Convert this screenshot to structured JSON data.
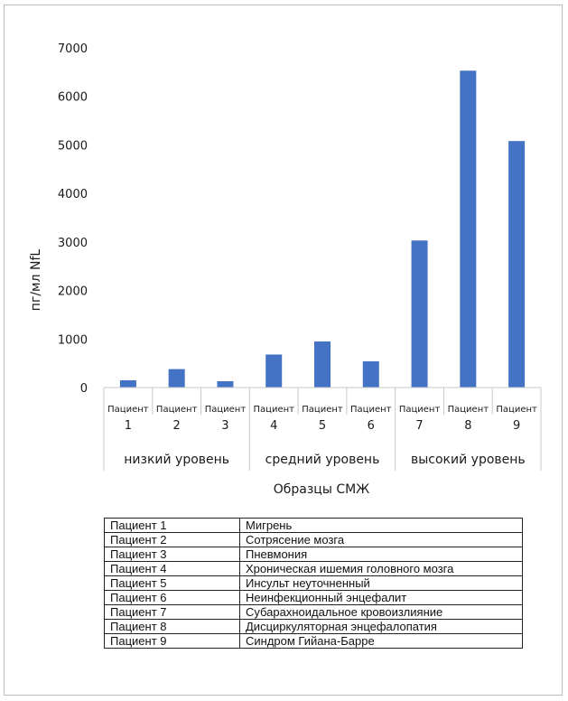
{
  "chart_data": {
    "type": "bar",
    "ylabel": "пг/мл NfL",
    "xlabel": "Образцы СМЖ",
    "ylim": [
      0,
      7000
    ],
    "yticks": [
      0,
      1000,
      2000,
      3000,
      4000,
      5000,
      6000,
      7000
    ],
    "grid": false,
    "bar_color": "#4472c4",
    "categories": [
      {
        "top": "Пациент",
        "num": "1",
        "value": 150
      },
      {
        "top": "Пациент",
        "num": "2",
        "value": 380
      },
      {
        "top": "Пациент",
        "num": "3",
        "value": 130
      },
      {
        "top": "Пациент",
        "num": "4",
        "value": 680
      },
      {
        "top": "Пациент",
        "num": "5",
        "value": 950
      },
      {
        "top": "Пациент",
        "num": "6",
        "value": 540
      },
      {
        "top": "Пациент",
        "num": "7",
        "value": 3030
      },
      {
        "top": "Пациент",
        "num": "8",
        "value": 6530
      },
      {
        "top": "Пациент",
        "num": "9",
        "value": 5080
      }
    ],
    "groups": [
      "низкий уровень",
      "средний уровень",
      "высокий уровень"
    ]
  },
  "legend_table": [
    {
      "patient": "Пациент 1",
      "diagnosis": "Мигрень"
    },
    {
      "patient": "Пациент 2",
      "diagnosis": "Сотрясение мозга"
    },
    {
      "patient": "Пациент 3",
      "diagnosis": "Пневмония"
    },
    {
      "patient": "Пациент 4",
      "diagnosis": "Хроническая ишемия головного мозга"
    },
    {
      "patient": "Пациент 5",
      "diagnosis": "Инсульт неуточненный"
    },
    {
      "patient": "Пациент 6",
      "diagnosis": "Неинфекционный энцефалит"
    },
    {
      "patient": "Пациент 7",
      "diagnosis": "Субарахноидальное кровоизлияние"
    },
    {
      "patient": "Пациент 8",
      "diagnosis": "Дисциркуляторная энцефалопатия"
    },
    {
      "patient": "Пациент 9",
      "diagnosis": "Синдром Гийана-Барре"
    }
  ]
}
